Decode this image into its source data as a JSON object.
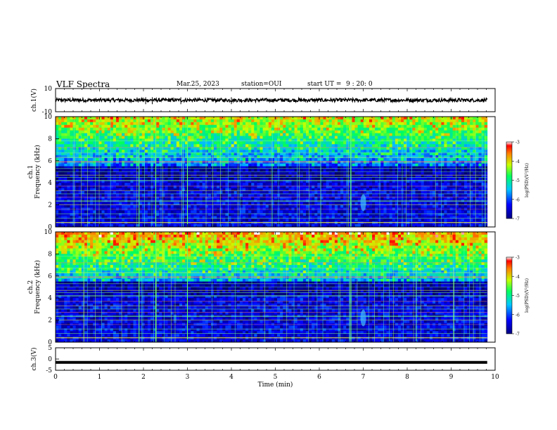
{
  "header": {
    "title": "VLF Spectra",
    "date": "Mar.25, 2023",
    "station": "station=OUI",
    "start_ut_label": "start  UT =",
    "start_ut_value": "9 : 20: 0"
  },
  "colors": {
    "background": "#ffffff",
    "axes": "#000000",
    "spectrogram_low": "#00007f",
    "spectrogram_high": "#ff0000"
  },
  "chart_data": [
    {
      "id": "ch1-waveform",
      "type": "line",
      "ylabel": "ch.1(V)",
      "ylim": [
        -10,
        10
      ],
      "ytick_labels": [
        "10",
        "-10"
      ],
      "xlim": [
        0,
        10
      ],
      "xlabel": "",
      "description_values": {
        "baseline": 0,
        "noise_amplitude": 1.5
      }
    },
    {
      "id": "ch1-spectrogram",
      "type": "heatmap",
      "ylabel": "ch.1\nFrequency (kHz)",
      "ylabel_lines": [
        "ch.1",
        "Frequency  (kHz)"
      ],
      "ylim": [
        0,
        10
      ],
      "ytick_labels": [
        "0",
        "2",
        "4",
        "6",
        "8",
        "10"
      ],
      "xlim": [
        0,
        9.8
      ],
      "colorbar": {
        "label": "log(PSD)(V²/Hz)",
        "range": [
          -7,
          -3
        ],
        "tick_labels": [
          "-3",
          "-4",
          "-5",
          "-6",
          "-7"
        ]
      }
    },
    {
      "id": "ch2-spectrogram",
      "type": "heatmap",
      "ylabel_lines": [
        "ch.2",
        "Frequency  (kHz)"
      ],
      "ylim": [
        0,
        10
      ],
      "ytick_labels": [
        "0",
        "2",
        "4",
        "6",
        "8",
        "10"
      ],
      "xlim": [
        0,
        9.8
      ],
      "colorbar": {
        "label": "log(PSD)(V²/Hz)",
        "range": [
          -7,
          -3
        ],
        "tick_labels": [
          "-3",
          "-4",
          "-5",
          "-6",
          "-7"
        ]
      }
    },
    {
      "id": "ch3-waveform",
      "type": "line",
      "ylabel": "ch.3(V)",
      "ylim": [
        -5,
        5
      ],
      "ytick_labels": [
        "5",
        "0",
        "-5"
      ],
      "xlim": [
        0,
        10
      ],
      "xlabel": "Time  (min)",
      "xtick_labels": [
        "0",
        "1",
        "2",
        "3",
        "4",
        "5",
        "6",
        "7",
        "8",
        "9",
        "10"
      ],
      "description_values": {
        "baseline": -1.5
      }
    }
  ]
}
